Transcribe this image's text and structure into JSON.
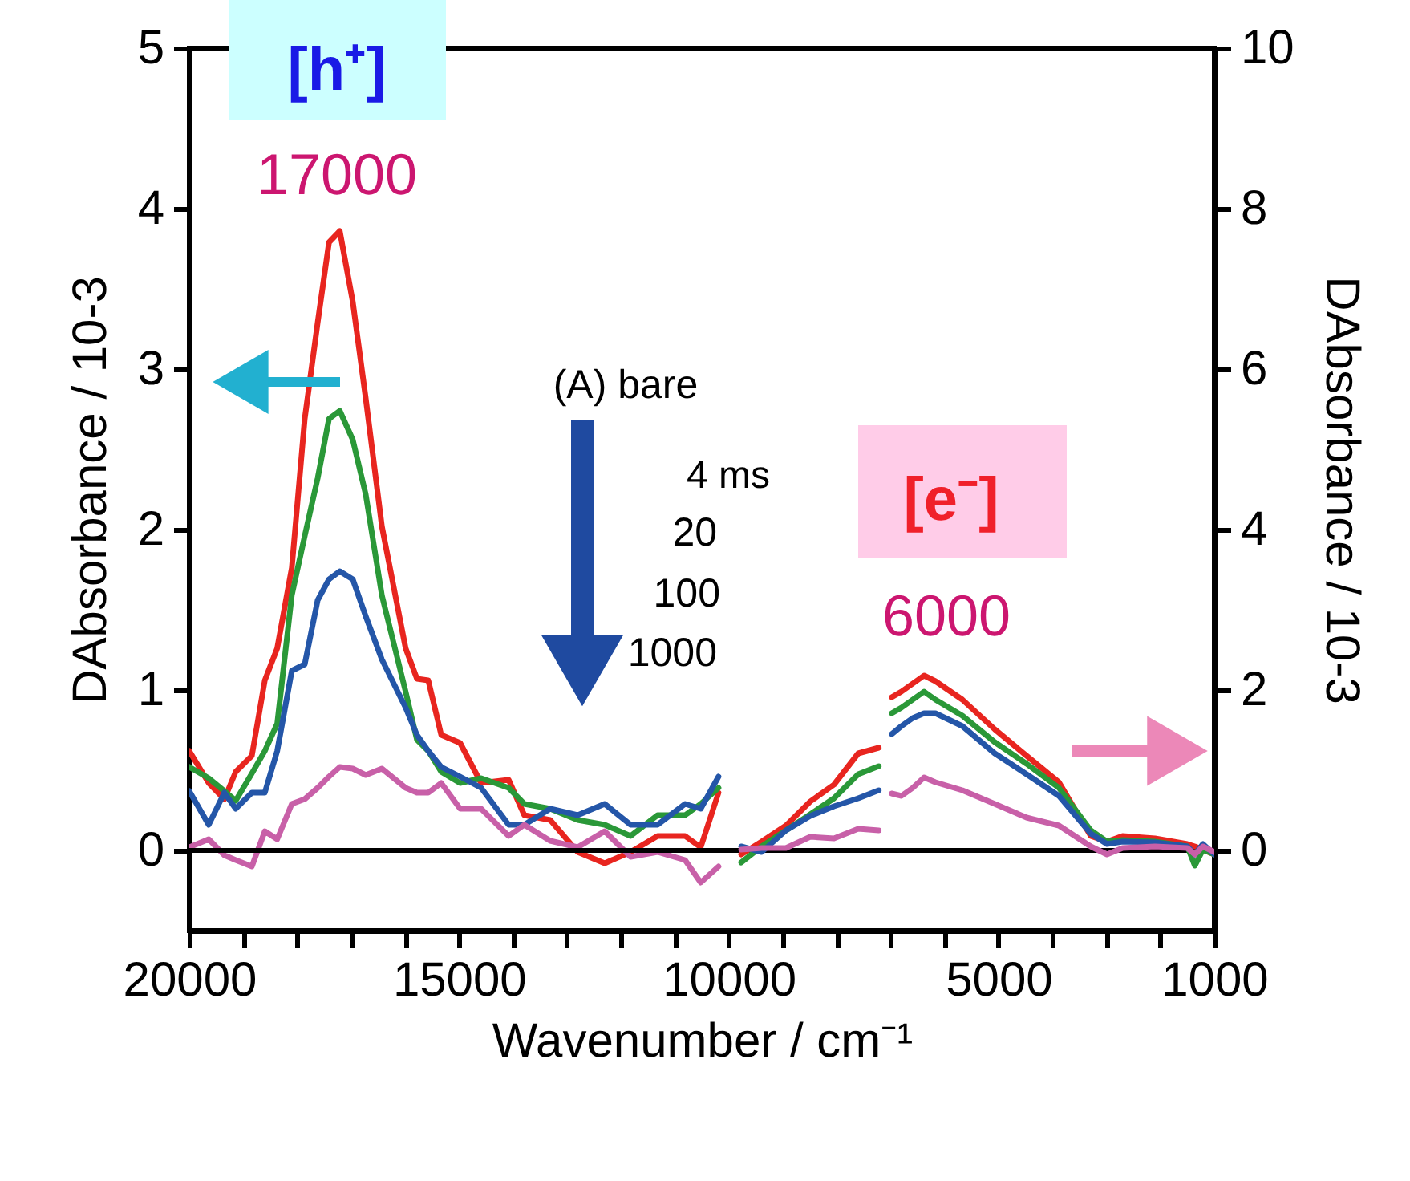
{
  "chart_data": {
    "type": "line",
    "xlabel": "Wavenumber / cm⁻¹",
    "ylabel": "DAbsorbance / 10-3",
    "y2label": "DAbsorbance / 10-3",
    "xlim": [
      20000,
      1000
    ],
    "xticks": [
      20000,
      {
        "value": 19000,
        "label": null
      },
      {
        "value": 18000,
        "label": null
      },
      {
        "value": 17000,
        "label": null
      },
      {
        "value": 16000,
        "label": null
      },
      15000,
      {
        "value": 14000,
        "label": null
      },
      {
        "value": 13000,
        "label": null
      },
      {
        "value": 12000,
        "label": null
      },
      {
        "value": 11000,
        "label": null
      },
      10000,
      {
        "value": 9000,
        "label": null
      },
      {
        "value": 8000,
        "label": null
      },
      {
        "value": 7000,
        "label": null
      },
      {
        "value": 6000,
        "label": null
      },
      5000,
      {
        "value": 4000,
        "label": null
      },
      {
        "value": 3000,
        "label": null
      },
      {
        "value": 2000,
        "label": null
      },
      1000
    ],
    "ylim": [
      -0.5,
      5
    ],
    "yticks": [
      0,
      1,
      2,
      3,
      4,
      5
    ],
    "y2lim": [
      -1,
      10
    ],
    "y2ticks": [
      0,
      2,
      4,
      6,
      8,
      10
    ],
    "grid": false,
    "ref_lines": [
      {
        "axis": "y",
        "value": 0,
        "color": "#000000"
      }
    ],
    "annotations": [
      "[h⁺]",
      "17000",
      "(A) bare",
      "4 ms",
      "20",
      "100",
      "1000",
      "[e⁻]",
      "6000"
    ],
    "series": [
      {
        "axis": "y",
        "color": "#e8251f",
        "x": [
          20000,
          19640,
          19350,
          19140,
          18840,
          18600,
          18370,
          18100,
          17860,
          17620,
          17410,
          17210,
          16970,
          16730,
          16430,
          15990,
          15780,
          15570,
          15330,
          14980,
          14590,
          14080,
          13790,
          13310,
          12800,
          12300,
          11820,
          11320,
          10810,
          10520,
          10190
        ],
        "values": [
          0.62,
          0.42,
          0.32,
          0.49,
          0.59,
          1.06,
          1.26,
          1.76,
          2.69,
          3.29,
          3.79,
          3.86,
          3.42,
          2.82,
          2.02,
          1.26,
          1.07,
          1.06,
          0.72,
          0.67,
          0.42,
          0.44,
          0.22,
          0.19,
          -0.01,
          -0.08,
          -0.01,
          0.09,
          0.09,
          0.02,
          0.36
        ]
      },
      {
        "axis": "y",
        "color": "#2a9838",
        "x": [
          20000,
          19640,
          19350,
          19140,
          18840,
          18600,
          18370,
          18100,
          17860,
          17620,
          17410,
          17210,
          16970,
          16730,
          16430,
          15990,
          15780,
          15570,
          15330,
          14980,
          14590,
          14080,
          13790,
          13310,
          12800,
          12300,
          11820,
          11320,
          10810,
          10520,
          10190
        ],
        "values": [
          0.52,
          0.45,
          0.37,
          0.31,
          0.48,
          0.62,
          0.79,
          1.59,
          1.96,
          2.32,
          2.69,
          2.74,
          2.56,
          2.22,
          1.59,
          0.99,
          0.69,
          0.62,
          0.49,
          0.42,
          0.45,
          0.39,
          0.29,
          0.26,
          0.19,
          0.16,
          0.09,
          0.22,
          0.22,
          0.29,
          0.39
        ]
      },
      {
        "axis": "y",
        "color": "#2456a8",
        "x": [
          20000,
          19640,
          19350,
          19140,
          18840,
          18600,
          18370,
          18100,
          17860,
          17620,
          17410,
          17210,
          16970,
          16730,
          16430,
          15990,
          15780,
          15570,
          15330,
          14980,
          14590,
          14080,
          13790,
          13310,
          12800,
          12300,
          11820,
          11320,
          10810,
          10520,
          10190
        ],
        "values": [
          0.37,
          0.16,
          0.36,
          0.26,
          0.36,
          0.36,
          0.62,
          1.12,
          1.16,
          1.56,
          1.69,
          1.74,
          1.69,
          1.46,
          1.19,
          0.89,
          0.72,
          0.62,
          0.52,
          0.46,
          0.39,
          0.16,
          0.16,
          0.26,
          0.22,
          0.29,
          0.16,
          0.16,
          0.29,
          0.26,
          0.46
        ]
      },
      {
        "axis": "y",
        "color": "#c860a8",
        "x": [
          20000,
          19640,
          19350,
          19140,
          18840,
          18600,
          18370,
          18100,
          17860,
          17620,
          17410,
          17210,
          16970,
          16730,
          16430,
          15990,
          15780,
          15570,
          15330,
          14980,
          14590,
          14080,
          13790,
          13310,
          12800,
          12300,
          11820,
          11320,
          10810,
          10520,
          10190
        ],
        "values": [
          0.02,
          0.07,
          -0.03,
          -0.06,
          -0.1,
          0.12,
          0.07,
          0.29,
          0.32,
          0.39,
          0.46,
          0.52,
          0.51,
          0.47,
          0.51,
          0.39,
          0.36,
          0.36,
          0.42,
          0.26,
          0.26,
          0.09,
          0.16,
          0.06,
          0.02,
          0.12,
          -0.04,
          -0.01,
          -0.06,
          -0.2,
          -0.1
        ]
      },
      {
        "axis": "y2",
        "color": "#e8251f",
        "x": [
          9770,
          9390,
          8940,
          8490,
          8050,
          7600,
          7220
        ],
        "values": [
          -0.05,
          0.11,
          0.31,
          0.61,
          0.82,
          1.21,
          1.28
        ]
      },
      {
        "axis": "y2",
        "color": "#2a9838",
        "x": [
          9770,
          9390,
          8940,
          8490,
          8050,
          7600,
          7220
        ],
        "values": [
          -0.15,
          0.05,
          0.25,
          0.45,
          0.65,
          0.95,
          1.05
        ]
      },
      {
        "axis": "y2",
        "color": "#2456a8",
        "x": [
          9770,
          9390,
          8940,
          8490,
          8050,
          7600,
          7220
        ],
        "values": [
          0.05,
          -0.02,
          0.25,
          0.43,
          0.55,
          0.65,
          0.75
        ]
      },
      {
        "axis": "y2",
        "color": "#c860a8",
        "x": [
          9770,
          9390,
          8940,
          8490,
          8050,
          7600,
          7220
        ],
        "values": [
          0.01,
          0.03,
          0.03,
          0.17,
          0.15,
          0.27,
          0.25
        ]
      },
      {
        "axis": "y2",
        "color": "#e8251f",
        "x": [
          6980,
          6800,
          6590,
          6380,
          6170,
          5670,
          5070,
          4480,
          3880,
          3290,
          2990,
          2700,
          2100,
          1500,
          1360,
          1210,
          1000
        ],
        "values": [
          1.91,
          1.98,
          2.08,
          2.18,
          2.11,
          1.88,
          1.51,
          1.18,
          0.85,
          0.18,
          0.11,
          0.18,
          0.15,
          0.08,
          0.05,
          0.01,
          -0.05
        ]
      },
      {
        "axis": "y2",
        "color": "#2a9838",
        "x": [
          6980,
          6800,
          6590,
          6380,
          6170,
          5670,
          5070,
          4480,
          3880,
          3290,
          2990,
          2700,
          2100,
          1500,
          1360,
          1210,
          1000
        ],
        "values": [
          1.71,
          1.78,
          1.88,
          1.98,
          1.88,
          1.68,
          1.35,
          1.08,
          0.78,
          0.25,
          0.11,
          0.13,
          0.11,
          0.05,
          -0.19,
          0.01,
          -0.05
        ]
      },
      {
        "axis": "y2",
        "color": "#2456a8",
        "x": [
          6980,
          6800,
          6590,
          6380,
          6170,
          5670,
          5070,
          4480,
          3880,
          3290,
          2990,
          2700,
          2100,
          1500,
          1360,
          1210,
          1000
        ],
        "values": [
          1.45,
          1.55,
          1.65,
          1.71,
          1.71,
          1.55,
          1.21,
          0.95,
          0.68,
          0.21,
          0.08,
          0.11,
          0.1,
          0.05,
          -0.05,
          0.08,
          -0.05
        ]
      },
      {
        "axis": "y2",
        "color": "#c860a8",
        "x": [
          6980,
          6800,
          6590,
          6380,
          6170,
          5670,
          5070,
          4480,
          3880,
          3290,
          2990,
          2700,
          2100,
          1500,
          1360,
          1210,
          1000
        ],
        "values": [
          0.71,
          0.68,
          0.78,
          0.91,
          0.85,
          0.75,
          0.58,
          0.41,
          0.31,
          0.05,
          -0.05,
          0.03,
          0.05,
          0.03,
          -0.05,
          0.05,
          -0.02
        ]
      }
    ]
  }
}
